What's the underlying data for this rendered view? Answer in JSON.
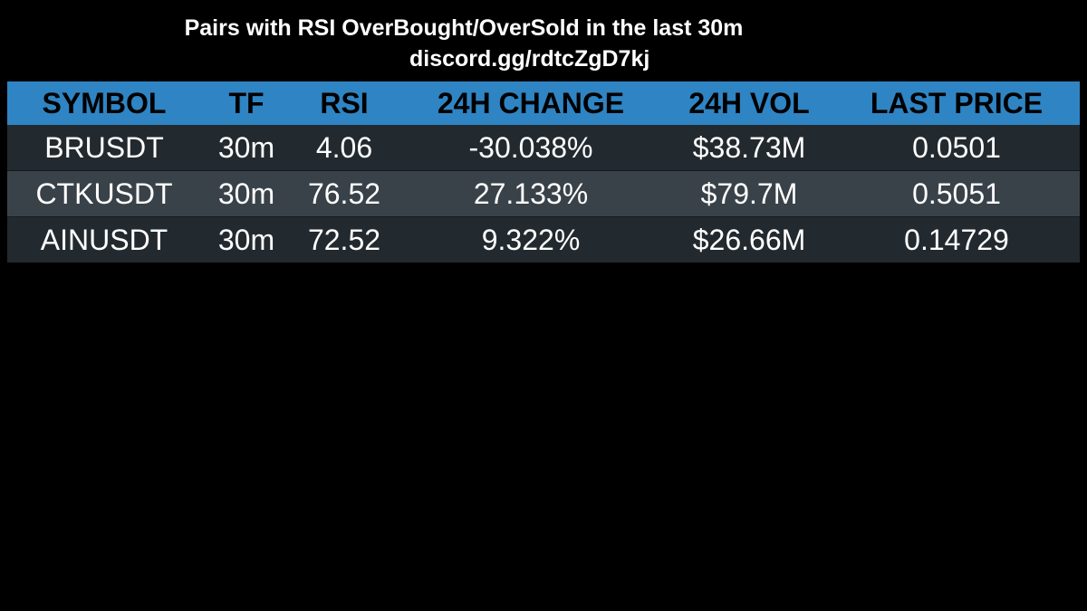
{
  "title": "Pairs with RSI OverBought/OverSold in the last 30m",
  "subtitle": "discord.gg/rdtcZgD7kj",
  "colors": {
    "background": "#000000",
    "header": "#2f84c3",
    "row_dark": "#232a2f",
    "row_light": "#3a4249"
  },
  "chart_data": {
    "type": "table",
    "title": "Pairs with RSI OverBought/OverSold in the last 30m",
    "columns": [
      "SYMBOL",
      "TF",
      "RSI",
      "24H CHANGE",
      "24H VOL",
      "LAST PRICE"
    ],
    "rows": [
      [
        "BRUSDT",
        "30m",
        "4.06",
        "-30.038%",
        "$38.73M",
        "0.0501"
      ],
      [
        "CTKUSDT",
        "30m",
        "76.52",
        "27.133%",
        "$79.7M",
        "0.5051"
      ],
      [
        "AINUSDT",
        "30m",
        "72.52",
        "9.322%",
        "$26.66M",
        "0.14729"
      ]
    ]
  }
}
